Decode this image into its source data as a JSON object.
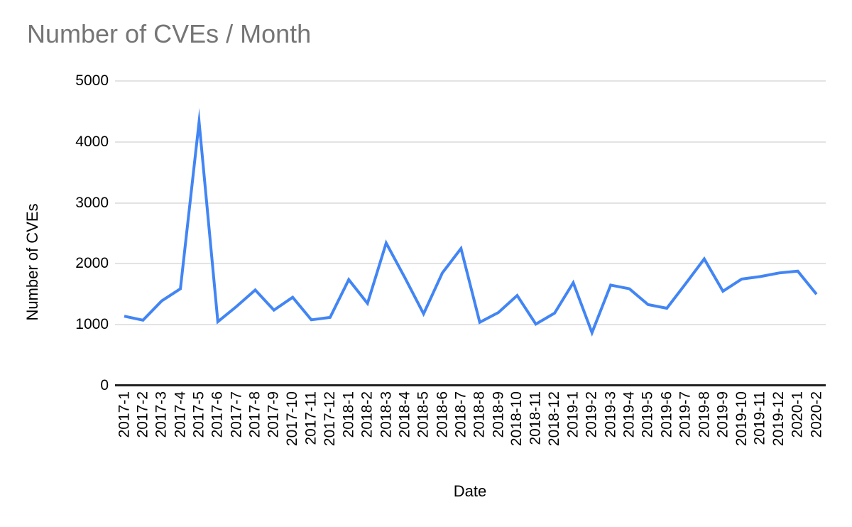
{
  "title": "Number of CVEs / Month",
  "chart_data": {
    "type": "line",
    "title": "Number of CVEs / Month",
    "xlabel": "Date",
    "ylabel": "Number of CVEs",
    "x": [
      "2017-1",
      "2017-2",
      "2017-3",
      "2017-4",
      "2017-5",
      "2017-6",
      "2017-7",
      "2017-8",
      "2017-9",
      "2017-10",
      "2017-11",
      "2017-12",
      "2018-1",
      "2018-2",
      "2018-3",
      "2018-4",
      "2018-5",
      "2018-6",
      "2018-7",
      "2018-8",
      "2018-9",
      "2018-10",
      "2018-11",
      "2018-12",
      "2019-1",
      "2019-2",
      "2019-3",
      "2019-4",
      "2019-5",
      "2019-6",
      "2019-7",
      "2019-8",
      "2019-9",
      "2019-10",
      "2019-11",
      "2019-12",
      "2020-1",
      "2020-2"
    ],
    "values": [
      1140,
      1075,
      1390,
      1590,
      4330,
      1050,
      1300,
      1570,
      1240,
      1450,
      1080,
      1120,
      1740,
      1350,
      2340,
      1770,
      1180,
      1850,
      2250,
      1040,
      1200,
      1480,
      1010,
      1190,
      1690,
      870,
      1650,
      1590,
      1330,
      1270,
      1670,
      2080,
      1550,
      1750,
      1790,
      1850,
      1880,
      1500
    ],
    "ylim": [
      0,
      5000
    ],
    "yticks": [
      0,
      1000,
      2000,
      3000,
      4000,
      5000
    ],
    "grid": "horizontal",
    "legend": "none",
    "colors": {
      "line": "#4285f4",
      "title_text": "#757575",
      "axis_text": "#000000",
      "gridline": "#e3e3e3",
      "axis_line": "#212121",
      "background": "#ffffff"
    }
  }
}
